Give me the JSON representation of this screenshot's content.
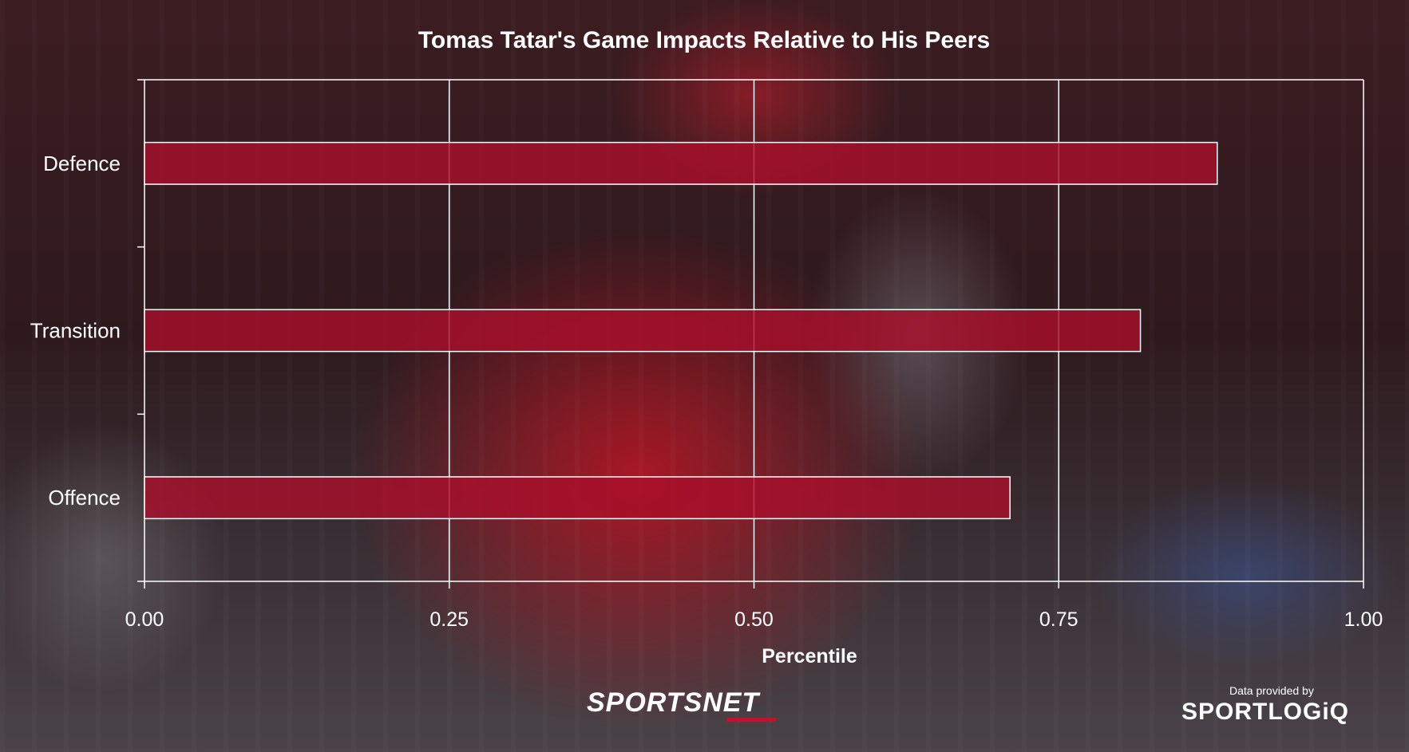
{
  "chart_data": {
    "type": "bar",
    "orientation": "horizontal",
    "title": "Tomas Tatar's Game Impacts Relative to His Peers",
    "xlabel": "Percentile",
    "ylabel": "",
    "categories": [
      "Defence",
      "Transition",
      "Offence"
    ],
    "values": [
      0.88,
      0.817,
      0.71
    ],
    "xlim": [
      0,
      1
    ],
    "xticks": [
      "0.00",
      "0.25",
      "0.50",
      "0.75",
      "1.00"
    ],
    "grid": true,
    "bar_color": "#a8102c"
  },
  "footer": {
    "network_logo": "SPORTSNET",
    "credit": "Data provided by",
    "data_logo": "SPORTLOGiQ"
  }
}
